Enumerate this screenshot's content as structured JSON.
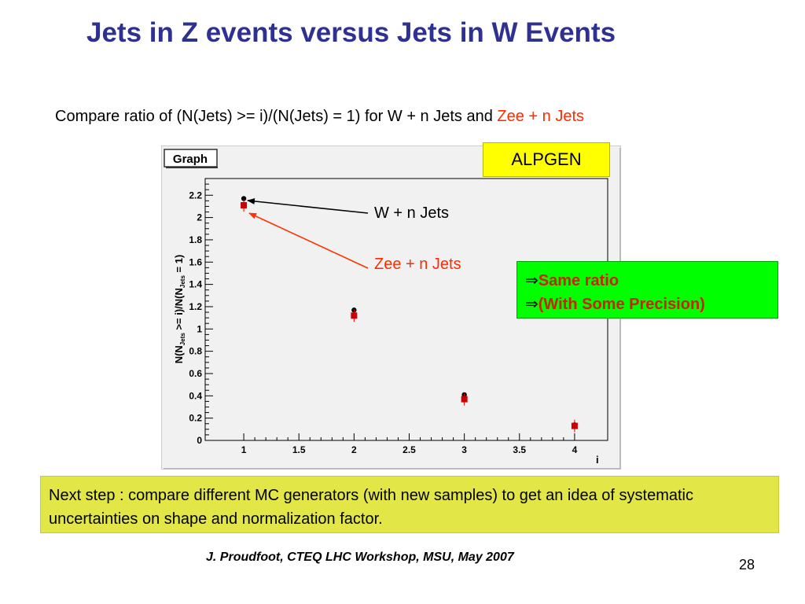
{
  "slide": {
    "title": "Jets in Z events versus Jets in W Events",
    "subtitle_main": "Compare ratio of (N(Jets) >= i)/(N(Jets) = 1) for W + n Jets and ",
    "subtitle_highlight": "Zee + n Jets",
    "alpgen_label": "ALPGEN",
    "label_w": "W + n Jets",
    "label_z": "Zee + n Jets",
    "conclusion": {
      "arrow": "⇒",
      "line1": "Same ratio",
      "line2": "(With Some Precision)"
    },
    "next_step": "Next step : compare different MC generators (with new samples) to get an idea of systematic uncertainties on shape and normalization factor.",
    "citation": "J. Proudfoot, CTEQ LHC Workshop, MSU, May 2007",
    "page_number": "28"
  },
  "chart_data": {
    "type": "scatter",
    "frame_label": "Graph",
    "xlabel": "i",
    "ylabel": "N(N_Jets >= i)/N(N_Jets = 1)",
    "xlim": [
      0.65,
      4.3
    ],
    "ylim": [
      0,
      2.35
    ],
    "x_ticks": [
      "1",
      "1.5",
      "2",
      "2.5",
      "3",
      "3.5",
      "4"
    ],
    "y_ticks": [
      "0",
      "0.2",
      "0.4",
      "0.6",
      "0.8",
      "1",
      "1.2",
      "1.4",
      "1.6",
      "1.8",
      "2",
      "2.2"
    ],
    "series": [
      {
        "name": "W + n Jets",
        "x": [
          1,
          2,
          3,
          4
        ],
        "y": [
          2.17,
          1.17,
          0.41,
          0.14
        ],
        "marker": "circle",
        "color": "#000000"
      },
      {
        "name": "Zee + n Jets",
        "x": [
          1,
          2,
          3,
          4
        ],
        "y": [
          2.11,
          1.12,
          0.37,
          0.13
        ],
        "marker": "square",
        "color": "#cc0000"
      }
    ],
    "colors": {
      "w_arrow": "#000000",
      "zee_arrow": "#ff3300"
    }
  }
}
